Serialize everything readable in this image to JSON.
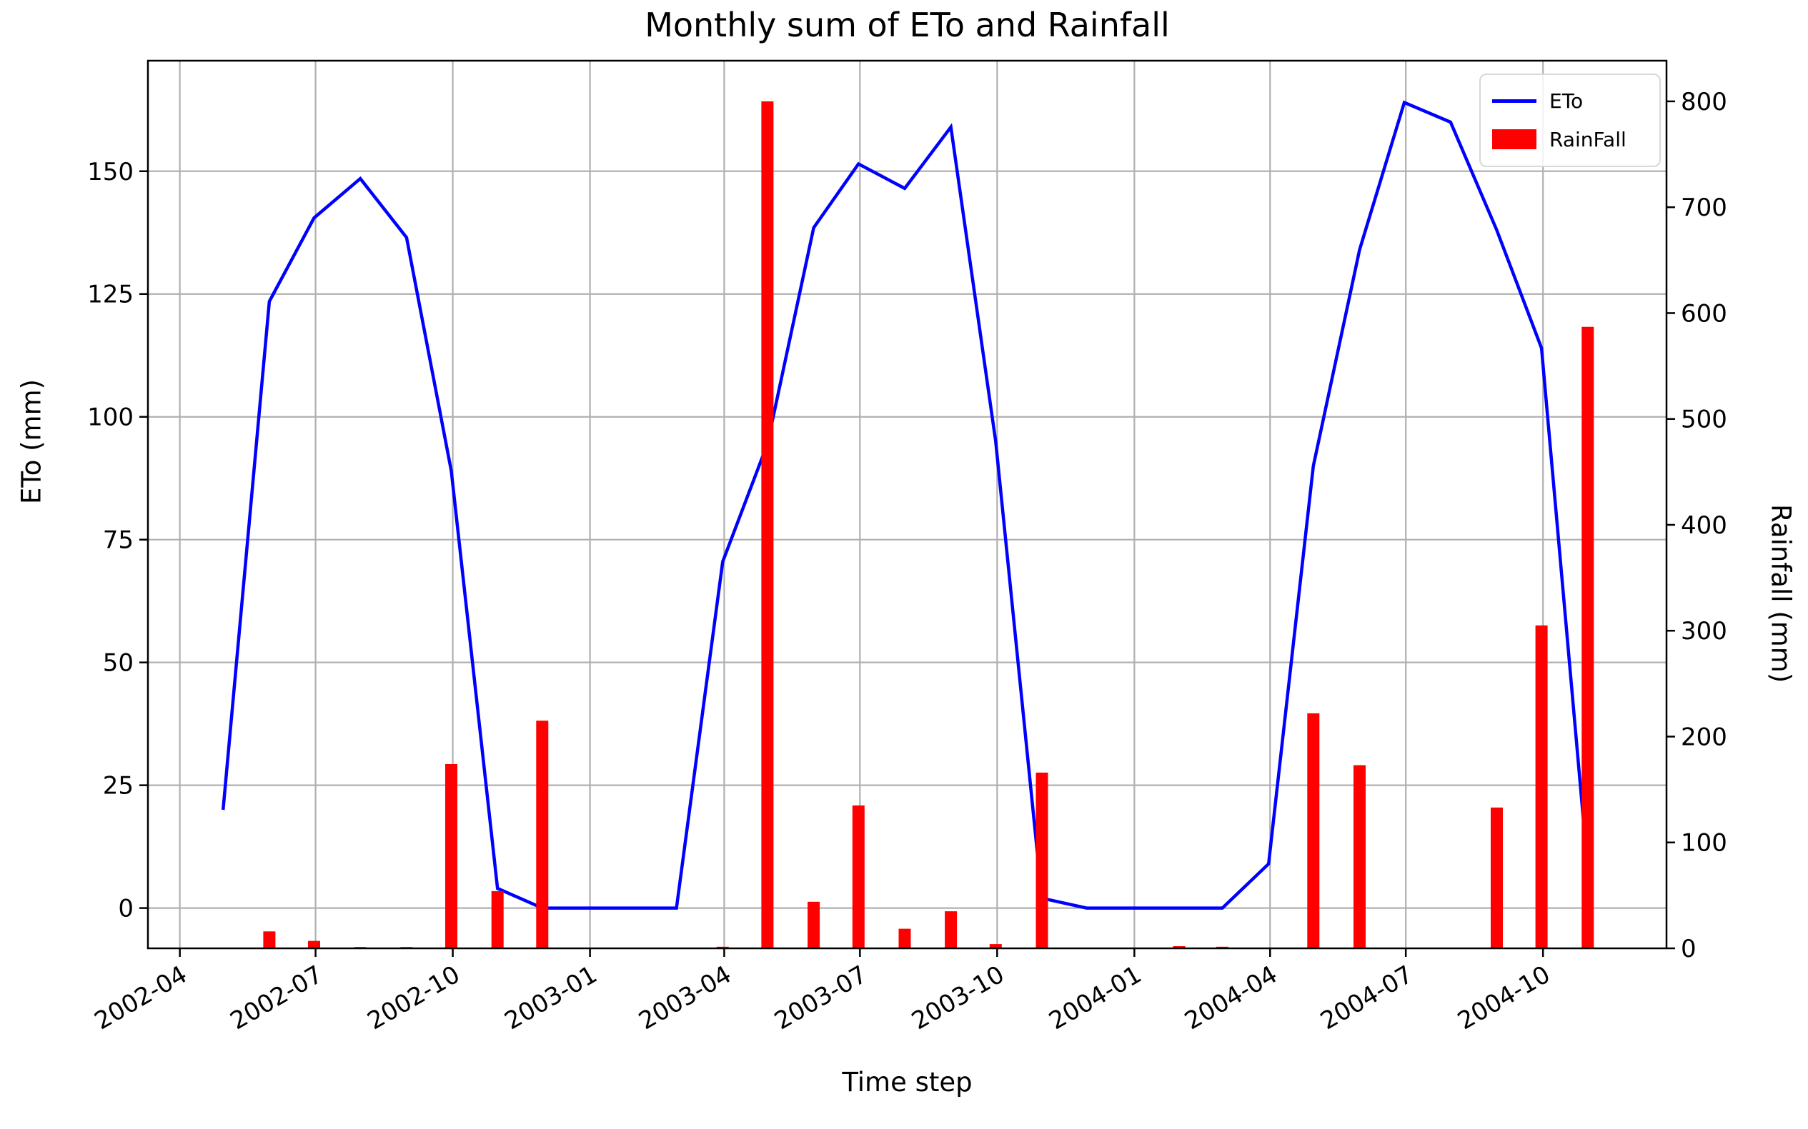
{
  "chart_data": {
    "type": "line-bar-combo",
    "title": "Monthly sum of ETo and Rainfall",
    "xlabel": "Time step",
    "ylabel_left": "ETo (mm)",
    "ylabel_right": "Rainfall (mm)",
    "grid": true,
    "legend_position": "upper right",
    "left_ticks": [
      0,
      25,
      50,
      75,
      100,
      125,
      150
    ],
    "left_ylim": [
      -8.2,
      172.5
    ],
    "right_ticks": [
      0,
      100,
      200,
      300,
      400,
      500,
      600,
      700,
      800
    ],
    "right_ylim": [
      0,
      838.4
    ],
    "x_ticks": [
      "2002-04",
      "2002-07",
      "2002-10",
      "2003-01",
      "2003-04",
      "2003-07",
      "2003-10",
      "2004-01",
      "2004-04",
      "2004-07",
      "2004-10"
    ],
    "x_lim_days_rel_first_tick": [
      -21.4,
      996.8
    ],
    "series": [
      {
        "name": "ETo",
        "type": "line",
        "axis": "left",
        "color": "#0000ff",
        "points": [
          {
            "month": "2002-04",
            "value": 20
          },
          {
            "month": "2002-05",
            "value": 123.5
          },
          {
            "month": "2002-06",
            "value": 140.5
          },
          {
            "month": "2002-07",
            "value": 148.5
          },
          {
            "month": "2002-08",
            "value": 136.5
          },
          {
            "month": "2002-09",
            "value": 89
          },
          {
            "month": "2002-10",
            "value": 4
          },
          {
            "month": "2002-11",
            "value": 0
          },
          {
            "month": "2002-12",
            "value": 0
          },
          {
            "month": "2003-01",
            "value": 0
          },
          {
            "month": "2003-02",
            "value": 0
          },
          {
            "month": "2003-03",
            "value": 70.5
          },
          {
            "month": "2003-04",
            "value": 94.5
          },
          {
            "month": "2003-05",
            "value": 138.5
          },
          {
            "month": "2003-06",
            "value": 151.5
          },
          {
            "month": "2003-07",
            "value": 146.5
          },
          {
            "month": "2003-08",
            "value": 159
          },
          {
            "month": "2003-09",
            "value": 95
          },
          {
            "month": "2003-10",
            "value": 2
          },
          {
            "month": "2003-11",
            "value": 0
          },
          {
            "month": "2003-12",
            "value": 0
          },
          {
            "month": "2004-01",
            "value": 0
          },
          {
            "month": "2004-02",
            "value": 0
          },
          {
            "month": "2004-03",
            "value": 9
          },
          {
            "month": "2004-04",
            "value": 90
          },
          {
            "month": "2004-05",
            "value": 134
          },
          {
            "month": "2004-06",
            "value": 164
          },
          {
            "month": "2004-07",
            "value": 160
          },
          {
            "month": "2004-08",
            "value": 138
          },
          {
            "month": "2004-09",
            "value": 114
          },
          {
            "month": "2004-10",
            "value": 8
          }
        ]
      },
      {
        "name": "RainFall",
        "type": "bar",
        "axis": "right",
        "color": "#ff0000",
        "points": [
          {
            "month": "2002-04",
            "value": 0
          },
          {
            "month": "2002-05",
            "value": 16
          },
          {
            "month": "2002-06",
            "value": 7
          },
          {
            "month": "2002-07",
            "value": 1.2
          },
          {
            "month": "2002-08",
            "value": 1.2
          },
          {
            "month": "2002-09",
            "value": 174
          },
          {
            "month": "2002-10",
            "value": 54
          },
          {
            "month": "2002-11",
            "value": 215
          },
          {
            "month": "2002-12",
            "value": 0
          },
          {
            "month": "2003-01",
            "value": 0
          },
          {
            "month": "2003-02",
            "value": 0
          },
          {
            "month": "2003-03",
            "value": 1.5
          },
          {
            "month": "2003-04",
            "value": 800
          },
          {
            "month": "2003-05",
            "value": 44
          },
          {
            "month": "2003-06",
            "value": 135
          },
          {
            "month": "2003-07",
            "value": 18.5
          },
          {
            "month": "2003-08",
            "value": 35
          },
          {
            "month": "2003-09",
            "value": 4
          },
          {
            "month": "2003-10",
            "value": 166
          },
          {
            "month": "2003-11",
            "value": 0
          },
          {
            "month": "2003-12",
            "value": 0
          },
          {
            "month": "2004-01",
            "value": 2
          },
          {
            "month": "2004-02",
            "value": 1.5
          },
          {
            "month": "2004-03",
            "value": 0
          },
          {
            "month": "2004-04",
            "value": 222
          },
          {
            "month": "2004-05",
            "value": 173
          },
          {
            "month": "2004-06",
            "value": 0
          },
          {
            "month": "2004-07",
            "value": 0
          },
          {
            "month": "2004-08",
            "value": 133
          },
          {
            "month": "2004-09",
            "value": 305
          },
          {
            "month": "2004-10",
            "value": 587
          },
          {
            "month": "2004-11",
            "value": 0
          }
        ]
      }
    ]
  }
}
